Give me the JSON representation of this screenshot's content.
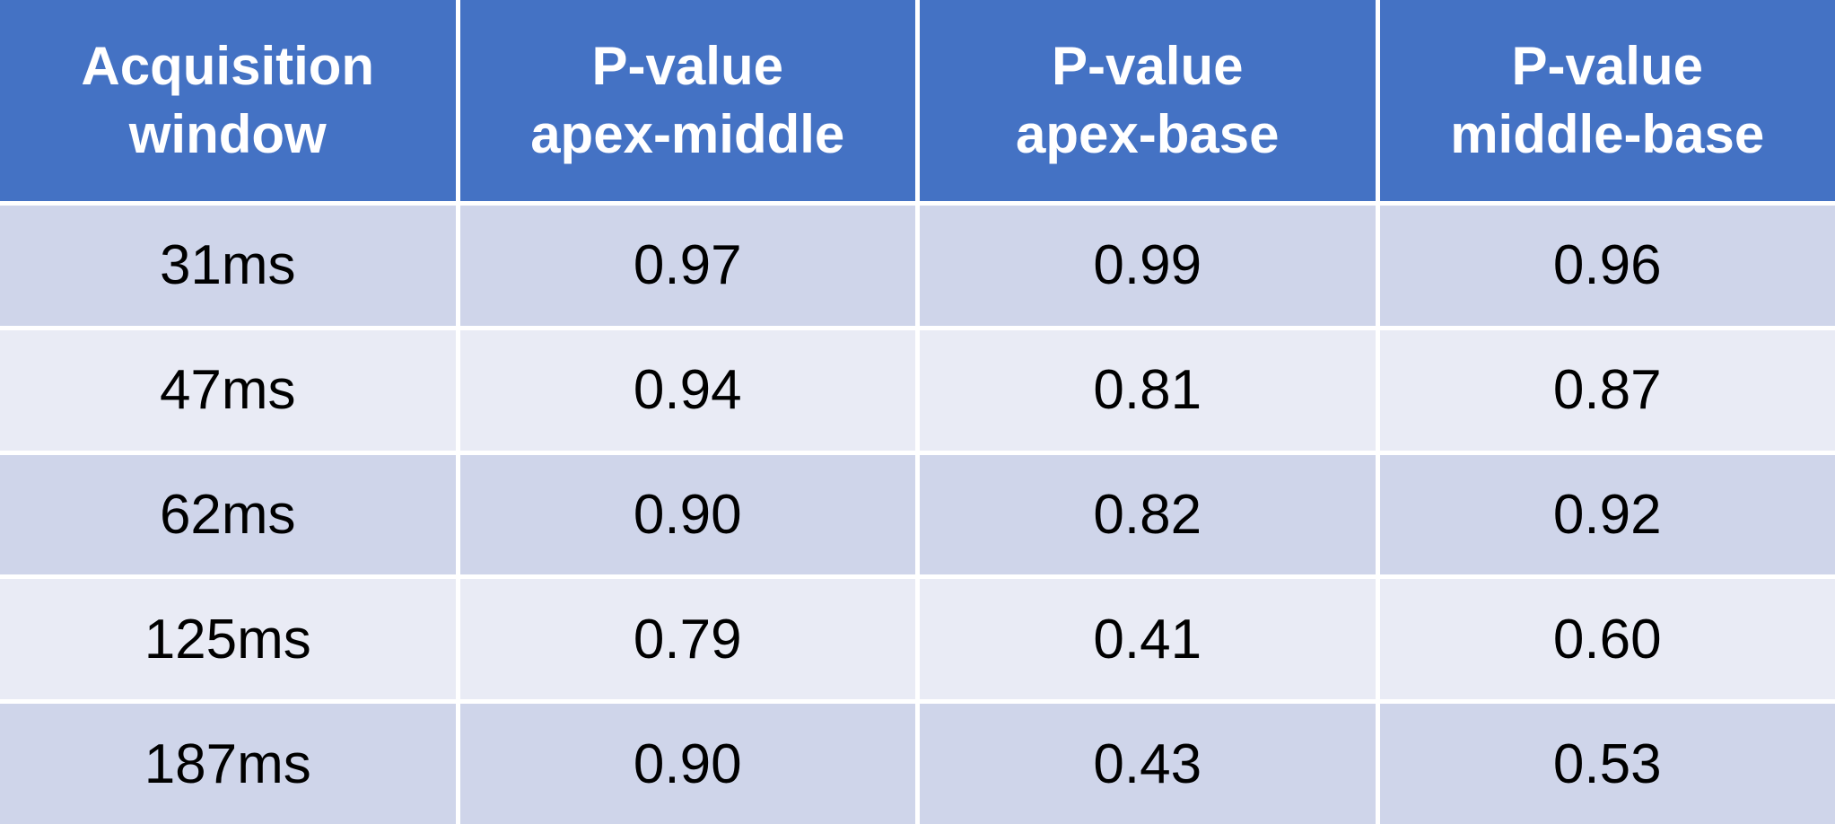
{
  "table": {
    "header": [
      [
        "Acquisition",
        "window"
      ],
      [
        "P-value",
        "apex-middle"
      ],
      [
        "P-value",
        "apex-base"
      ],
      [
        "P-value",
        "middle-base"
      ]
    ],
    "rows": [
      [
        "31ms",
        "0.97",
        "0.99",
        "0.96"
      ],
      [
        "47ms",
        "0.94",
        "0.81",
        "0.87"
      ],
      [
        "62ms",
        "0.90",
        "0.82",
        "0.92"
      ],
      [
        "125ms",
        "0.79",
        "0.41",
        "0.60"
      ],
      [
        "187ms",
        "0.90",
        "0.43",
        "0.53"
      ]
    ]
  }
}
